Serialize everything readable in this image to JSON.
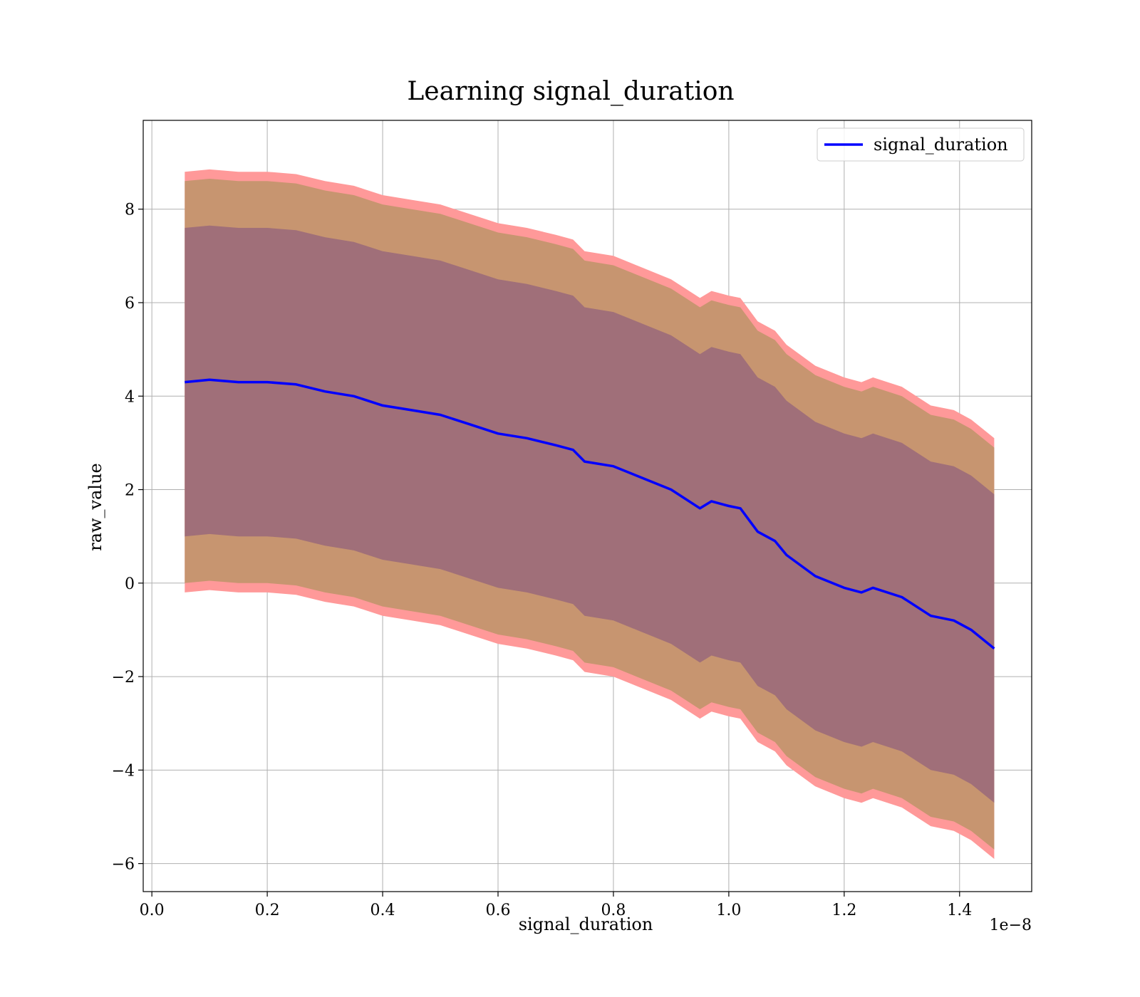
{
  "chart_data": {
    "type": "line",
    "title": "Learning signal_duration",
    "xlabel": "signal_duration",
    "ylabel": "raw_value",
    "x_offset_label": "1e−8",
    "xlim": [
      -0.015,
      1.525
    ],
    "ylim": [
      -6.6,
      9.9
    ],
    "x_ticks": [
      0.0,
      0.2,
      0.4,
      0.6,
      0.8,
      1.0,
      1.2,
      1.4
    ],
    "x_tick_labels": [
      "0.0",
      "0.2",
      "0.4",
      "0.6",
      "0.8",
      "1.0",
      "1.2",
      "1.4"
    ],
    "y_ticks": [
      -6,
      -4,
      -2,
      0,
      2,
      4,
      6,
      8
    ],
    "y_tick_labels": [
      "−6",
      "−4",
      "−2",
      "0",
      "2",
      "4",
      "6",
      "8"
    ],
    "grid": true,
    "legend": {
      "placement": "top-right",
      "entries": [
        "signal_duration"
      ]
    },
    "colors": {
      "line": "#0000ff",
      "band_outer": "#ff9999",
      "band_middle": "#c79570",
      "band_inner": "#a06f79"
    },
    "series": [
      {
        "name": "signal_duration",
        "x": [
          0.057,
          0.1,
          0.15,
          0.2,
          0.25,
          0.3,
          0.35,
          0.4,
          0.45,
          0.5,
          0.55,
          0.6,
          0.65,
          0.7,
          0.73,
          0.75,
          0.8,
          0.85,
          0.9,
          0.95,
          0.97,
          1.0,
          1.02,
          1.05,
          1.08,
          1.1,
          1.15,
          1.2,
          1.23,
          1.25,
          1.3,
          1.35,
          1.39,
          1.42,
          1.46
        ],
        "y": [
          4.3,
          4.35,
          4.3,
          4.3,
          4.25,
          4.1,
          4.0,
          3.8,
          3.7,
          3.6,
          3.4,
          3.2,
          3.1,
          2.95,
          2.85,
          2.6,
          2.5,
          2.25,
          2.0,
          1.6,
          1.75,
          1.65,
          1.6,
          1.1,
          0.9,
          0.6,
          0.15,
          -0.1,
          -0.2,
          -0.1,
          -0.3,
          -0.7,
          -0.8,
          -1.0,
          -1.4
        ]
      }
    ],
    "bands": [
      {
        "x": [
          0.057,
          0.1,
          0.15,
          0.2,
          0.25,
          0.3,
          0.35,
          0.4,
          0.45,
          0.5,
          0.55,
          0.6,
          0.65,
          0.7,
          0.73,
          0.75,
          0.8,
          0.85,
          0.9,
          0.95,
          0.97,
          1.0,
          1.02,
          1.05,
          1.08,
          1.1,
          1.15,
          1.2,
          1.23,
          1.25,
          1.3,
          1.35,
          1.39,
          1.42,
          1.46
        ],
        "upper": [
          8.8,
          8.85,
          8.8,
          8.8,
          8.75,
          8.6,
          8.5,
          8.3,
          8.2,
          8.1,
          7.9,
          7.7,
          7.6,
          7.45,
          7.35,
          7.1,
          7.0,
          6.75,
          6.5,
          6.1,
          6.25,
          6.15,
          6.1,
          5.6,
          5.4,
          5.1,
          4.65,
          4.4,
          4.3,
          4.4,
          4.2,
          3.8,
          3.7,
          3.5,
          3.1
        ],
        "lower": [
          -0.2,
          -0.15,
          -0.2,
          -0.2,
          -0.25,
          -0.4,
          -0.5,
          -0.7,
          -0.8,
          -0.9,
          -1.1,
          -1.3,
          -1.4,
          -1.55,
          -1.65,
          -1.9,
          -2.0,
          -2.25,
          -2.5,
          -2.9,
          -2.75,
          -2.85,
          -2.9,
          -3.4,
          -3.6,
          -3.9,
          -4.35,
          -4.6,
          -4.7,
          -4.6,
          -4.8,
          -5.2,
          -5.3,
          -5.5,
          -5.9
        ]
      },
      {
        "x": [
          0.057,
          0.1,
          0.15,
          0.2,
          0.25,
          0.3,
          0.35,
          0.4,
          0.45,
          0.5,
          0.55,
          0.6,
          0.65,
          0.7,
          0.73,
          0.75,
          0.8,
          0.85,
          0.9,
          0.95,
          0.97,
          1.0,
          1.02,
          1.05,
          1.08,
          1.1,
          1.15,
          1.2,
          1.23,
          1.25,
          1.3,
          1.35,
          1.39,
          1.42,
          1.46
        ],
        "upper": [
          8.6,
          8.65,
          8.6,
          8.6,
          8.55,
          8.4,
          8.3,
          8.1,
          8.0,
          7.9,
          7.7,
          7.5,
          7.4,
          7.25,
          7.15,
          6.9,
          6.8,
          6.55,
          6.3,
          5.9,
          6.05,
          5.95,
          5.9,
          5.4,
          5.2,
          4.9,
          4.45,
          4.2,
          4.1,
          4.2,
          4.0,
          3.6,
          3.5,
          3.3,
          2.9
        ],
        "lower": [
          0.0,
          0.05,
          0.0,
          0.0,
          -0.05,
          -0.2,
          -0.3,
          -0.5,
          -0.6,
          -0.7,
          -0.9,
          -1.1,
          -1.2,
          -1.35,
          -1.45,
          -1.7,
          -1.8,
          -2.05,
          -2.3,
          -2.7,
          -2.55,
          -2.65,
          -2.7,
          -3.2,
          -3.4,
          -3.7,
          -4.15,
          -4.4,
          -4.5,
          -4.4,
          -4.6,
          -5.0,
          -5.1,
          -5.3,
          -5.7
        ]
      },
      {
        "x": [
          0.057,
          0.1,
          0.15,
          0.2,
          0.25,
          0.3,
          0.35,
          0.4,
          0.45,
          0.5,
          0.55,
          0.6,
          0.65,
          0.7,
          0.73,
          0.75,
          0.8,
          0.85,
          0.9,
          0.95,
          0.97,
          1.0,
          1.02,
          1.05,
          1.08,
          1.1,
          1.15,
          1.2,
          1.23,
          1.25,
          1.3,
          1.35,
          1.39,
          1.42,
          1.46
        ],
        "upper": [
          7.6,
          7.65,
          7.6,
          7.6,
          7.55,
          7.4,
          7.3,
          7.1,
          7.0,
          6.9,
          6.7,
          6.5,
          6.4,
          6.25,
          6.15,
          5.9,
          5.8,
          5.55,
          5.3,
          4.9,
          5.05,
          4.95,
          4.9,
          4.4,
          4.2,
          3.9,
          3.45,
          3.2,
          3.1,
          3.2,
          3.0,
          2.6,
          2.5,
          2.3,
          1.9
        ],
        "lower": [
          1.0,
          1.05,
          1.0,
          1.0,
          0.95,
          0.8,
          0.7,
          0.5,
          0.4,
          0.3,
          0.1,
          -0.1,
          -0.2,
          -0.35,
          -0.45,
          -0.7,
          -0.8,
          -1.05,
          -1.3,
          -1.7,
          -1.55,
          -1.65,
          -1.7,
          -2.2,
          -2.4,
          -2.7,
          -3.15,
          -3.4,
          -3.5,
          -3.4,
          -3.6,
          -4.0,
          -4.1,
          -4.3,
          -4.7
        ]
      }
    ]
  }
}
